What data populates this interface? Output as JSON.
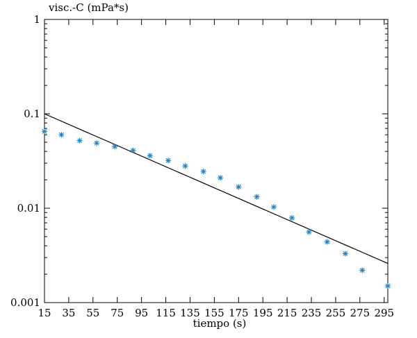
{
  "chart_data": {
    "type": "scatter",
    "ylabel": "visc.-C (mPa*s)",
    "xlabel": "tiempo (s)",
    "xlim": [
      15,
      298
    ],
    "ylim": [
      0.001,
      1
    ],
    "y_scale": "log",
    "x_ticks": [
      15,
      35,
      55,
      75,
      95,
      115,
      135,
      155,
      175,
      195,
      215,
      235,
      255,
      275,
      295
    ],
    "y_ticks": [
      {
        "value": 1,
        "label": "1"
      },
      {
        "value": 0.1,
        "label": "0.1"
      },
      {
        "value": 0.01,
        "label": "0.01"
      },
      {
        "value": 0.001,
        "label": "0.001"
      }
    ],
    "grid": false,
    "series": [
      {
        "kind": "scatter",
        "marker": "asterisk",
        "color": "#1a86c8",
        "x": [
          15,
          29,
          44,
          58,
          73,
          88,
          102,
          117,
          131,
          146,
          160,
          175,
          190,
          204,
          219,
          233,
          248,
          263,
          277,
          298
        ],
        "y": [
          0.065,
          0.06,
          0.052,
          0.049,
          0.045,
          0.041,
          0.036,
          0.032,
          0.028,
          0.0245,
          0.021,
          0.0168,
          0.0132,
          0.0103,
          0.0079,
          0.0056,
          0.0044,
          0.0033,
          0.0022,
          0.0015
        ]
      },
      {
        "kind": "line",
        "color": "#000000",
        "x": [
          15,
          298
        ],
        "y": [
          0.1,
          0.0026
        ]
      }
    ]
  }
}
